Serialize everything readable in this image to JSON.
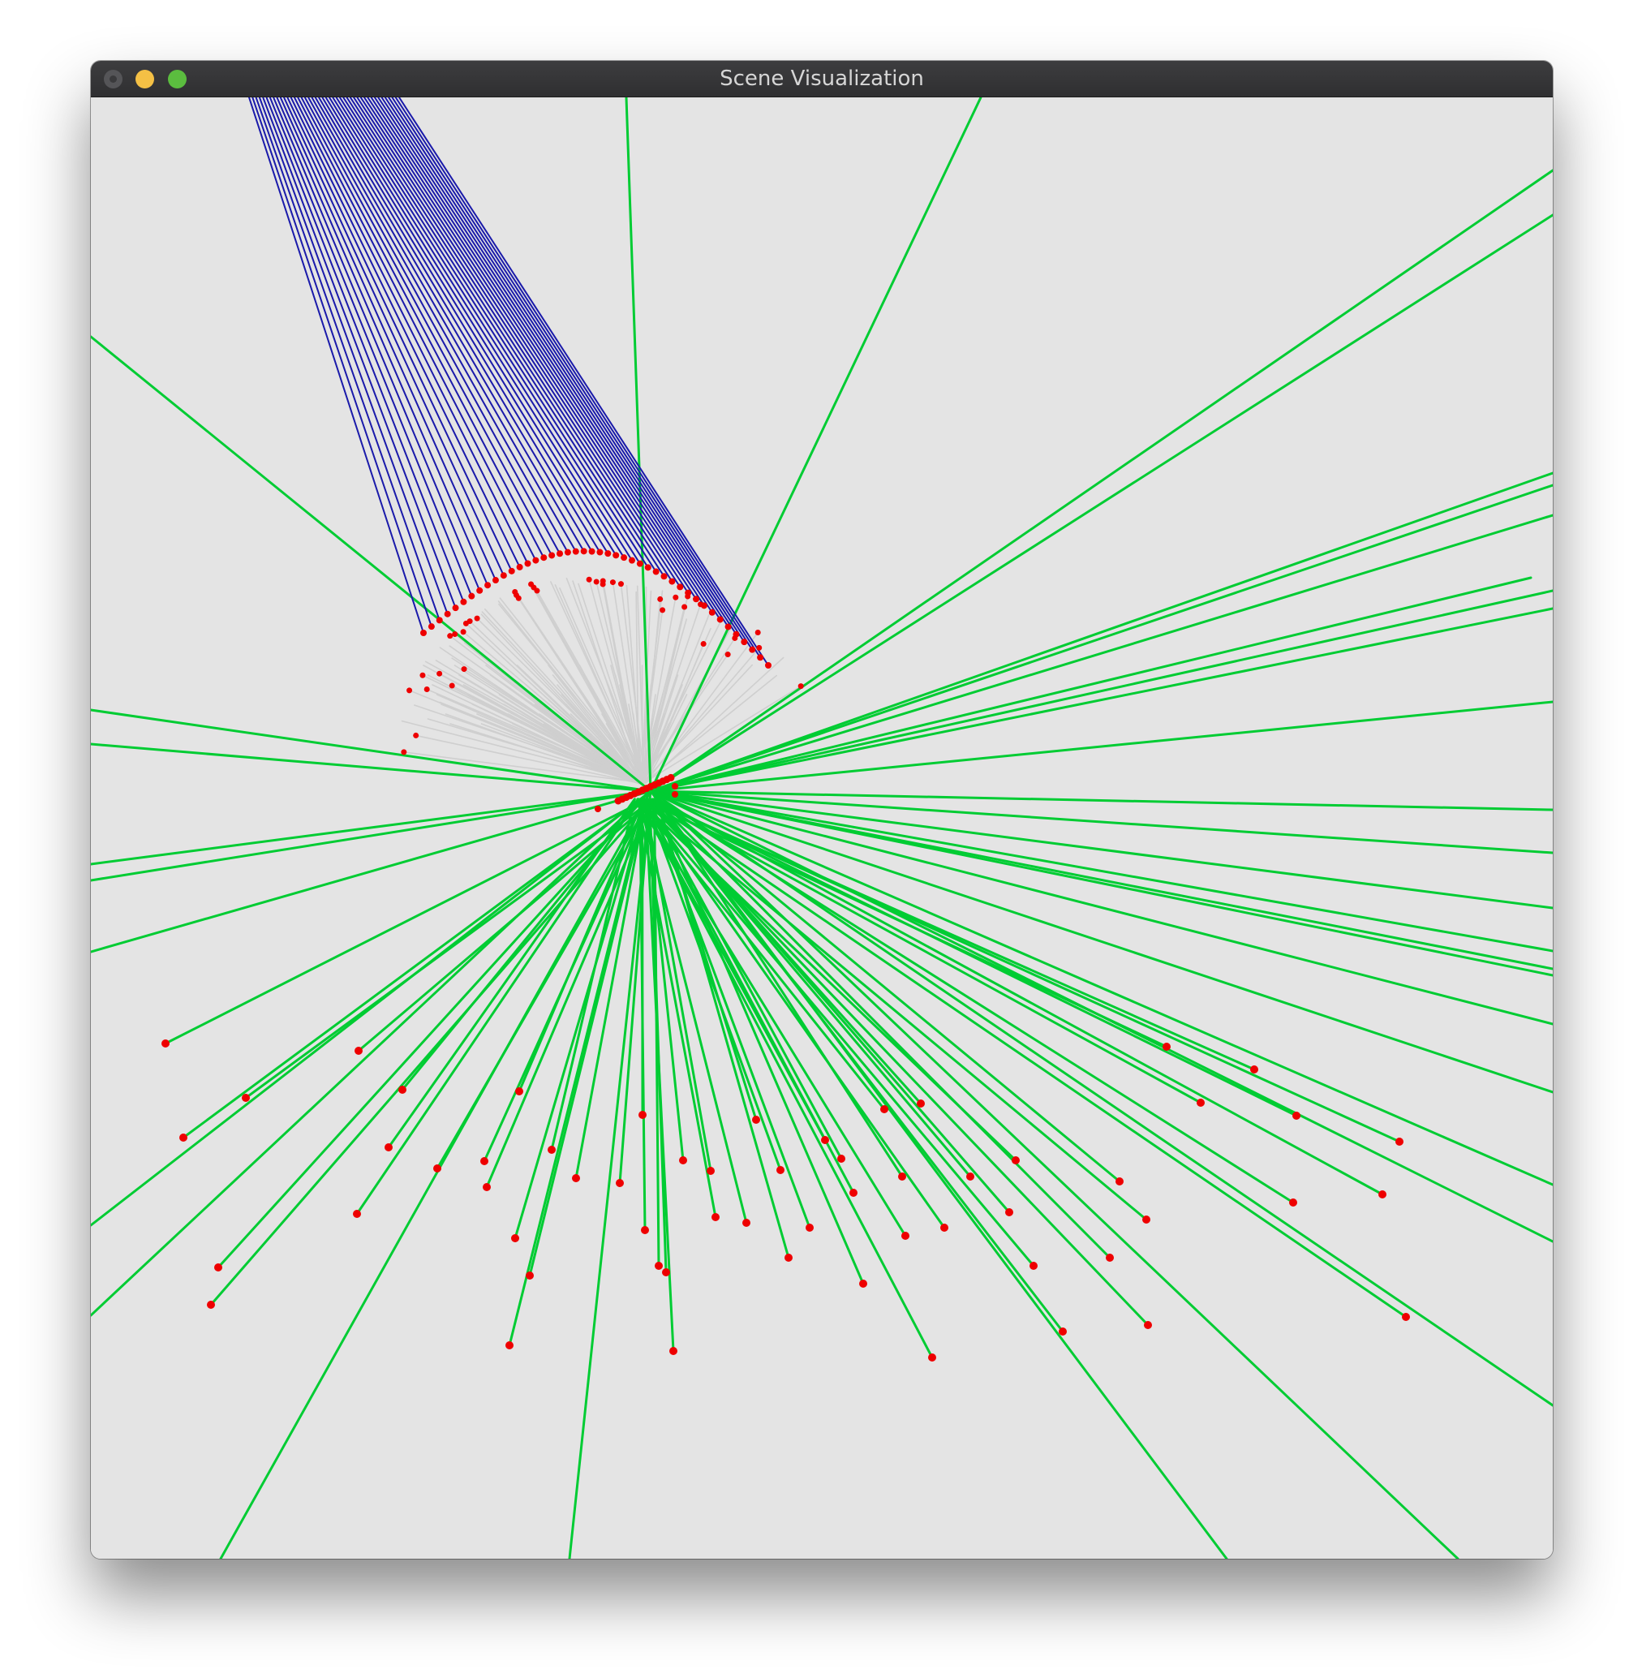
{
  "window": {
    "title": "Scene Visualization",
    "controls": [
      "close",
      "minimize",
      "zoom"
    ]
  },
  "scene": {
    "background_color": "#e4e4e4",
    "green_ray_color": "#00cc33",
    "blue_ray_color": "#1a1aaa",
    "gray_ray_color": "#cfcfcf",
    "hit_point_color": "#ee0000"
  }
}
